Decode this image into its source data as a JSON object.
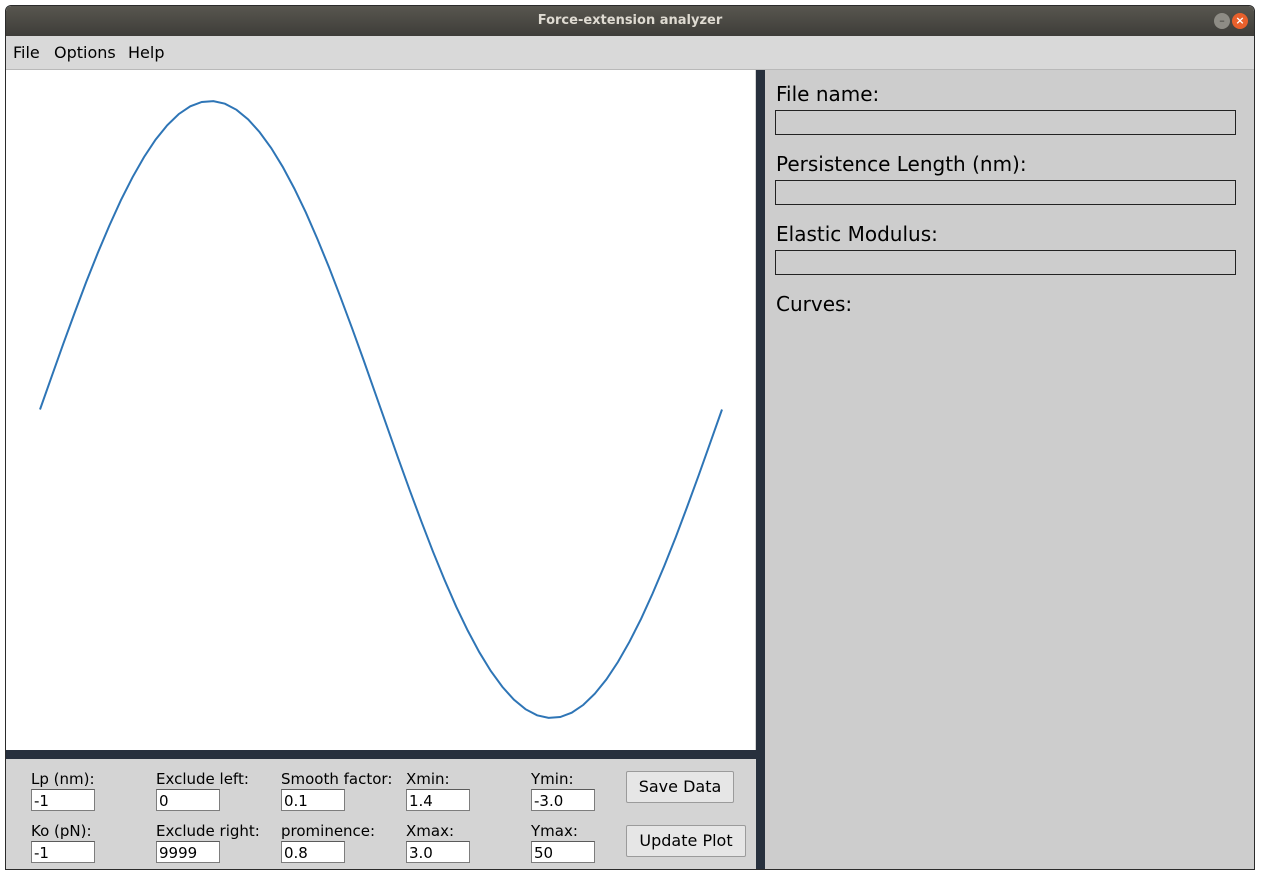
{
  "window": {
    "title": "Force-extension analyzer",
    "minimize_glyph": "–",
    "close_glyph": "×"
  },
  "menu": [
    "File",
    "Options",
    "Help"
  ],
  "plot": {
    "line_color": "#2e75b6"
  },
  "chart_data": {
    "type": "line",
    "title": "",
    "xlabel": "",
    "ylabel": "",
    "series": [
      {
        "x": [
          0,
          1.5708,
          3.1416,
          4.7124,
          6.2832
        ],
        "shape": "sine",
        "points": 60
      }
    ],
    "x_range": [
      0,
      6.2832
    ],
    "y_range": [
      -1.0,
      1.0
    ],
    "grid": false
  },
  "controls": {
    "lp_label": "Lp (nm):",
    "lp_value": "-1",
    "ko_label": "Ko (pN):",
    "ko_value": "-1",
    "exclude_left_label": "Exclude left:",
    "exclude_left_value": "0",
    "exclude_right_label": "Exclude right:",
    "exclude_right_value": "9999",
    "smooth_label": "Smooth factor:",
    "smooth_value": "0.1",
    "prominence_label": "prominence:",
    "prominence_value": "0.8",
    "xmin_label": "Xmin:",
    "xmin_value": "1.4",
    "xmax_label": "Xmax:",
    "xmax_value": "3.0",
    "ymin_label": "Ymin:",
    "ymin_value": "-3.0",
    "ymax_label": "Ymax:",
    "ymax_value": "50",
    "save_label": "Save Data",
    "update_label": "Update Plot"
  },
  "info": {
    "file_name_label": "File name:",
    "persistence_label": "Persistence Length (nm):",
    "elastic_label": "Elastic Modulus:",
    "curves_label": "Curves:"
  }
}
